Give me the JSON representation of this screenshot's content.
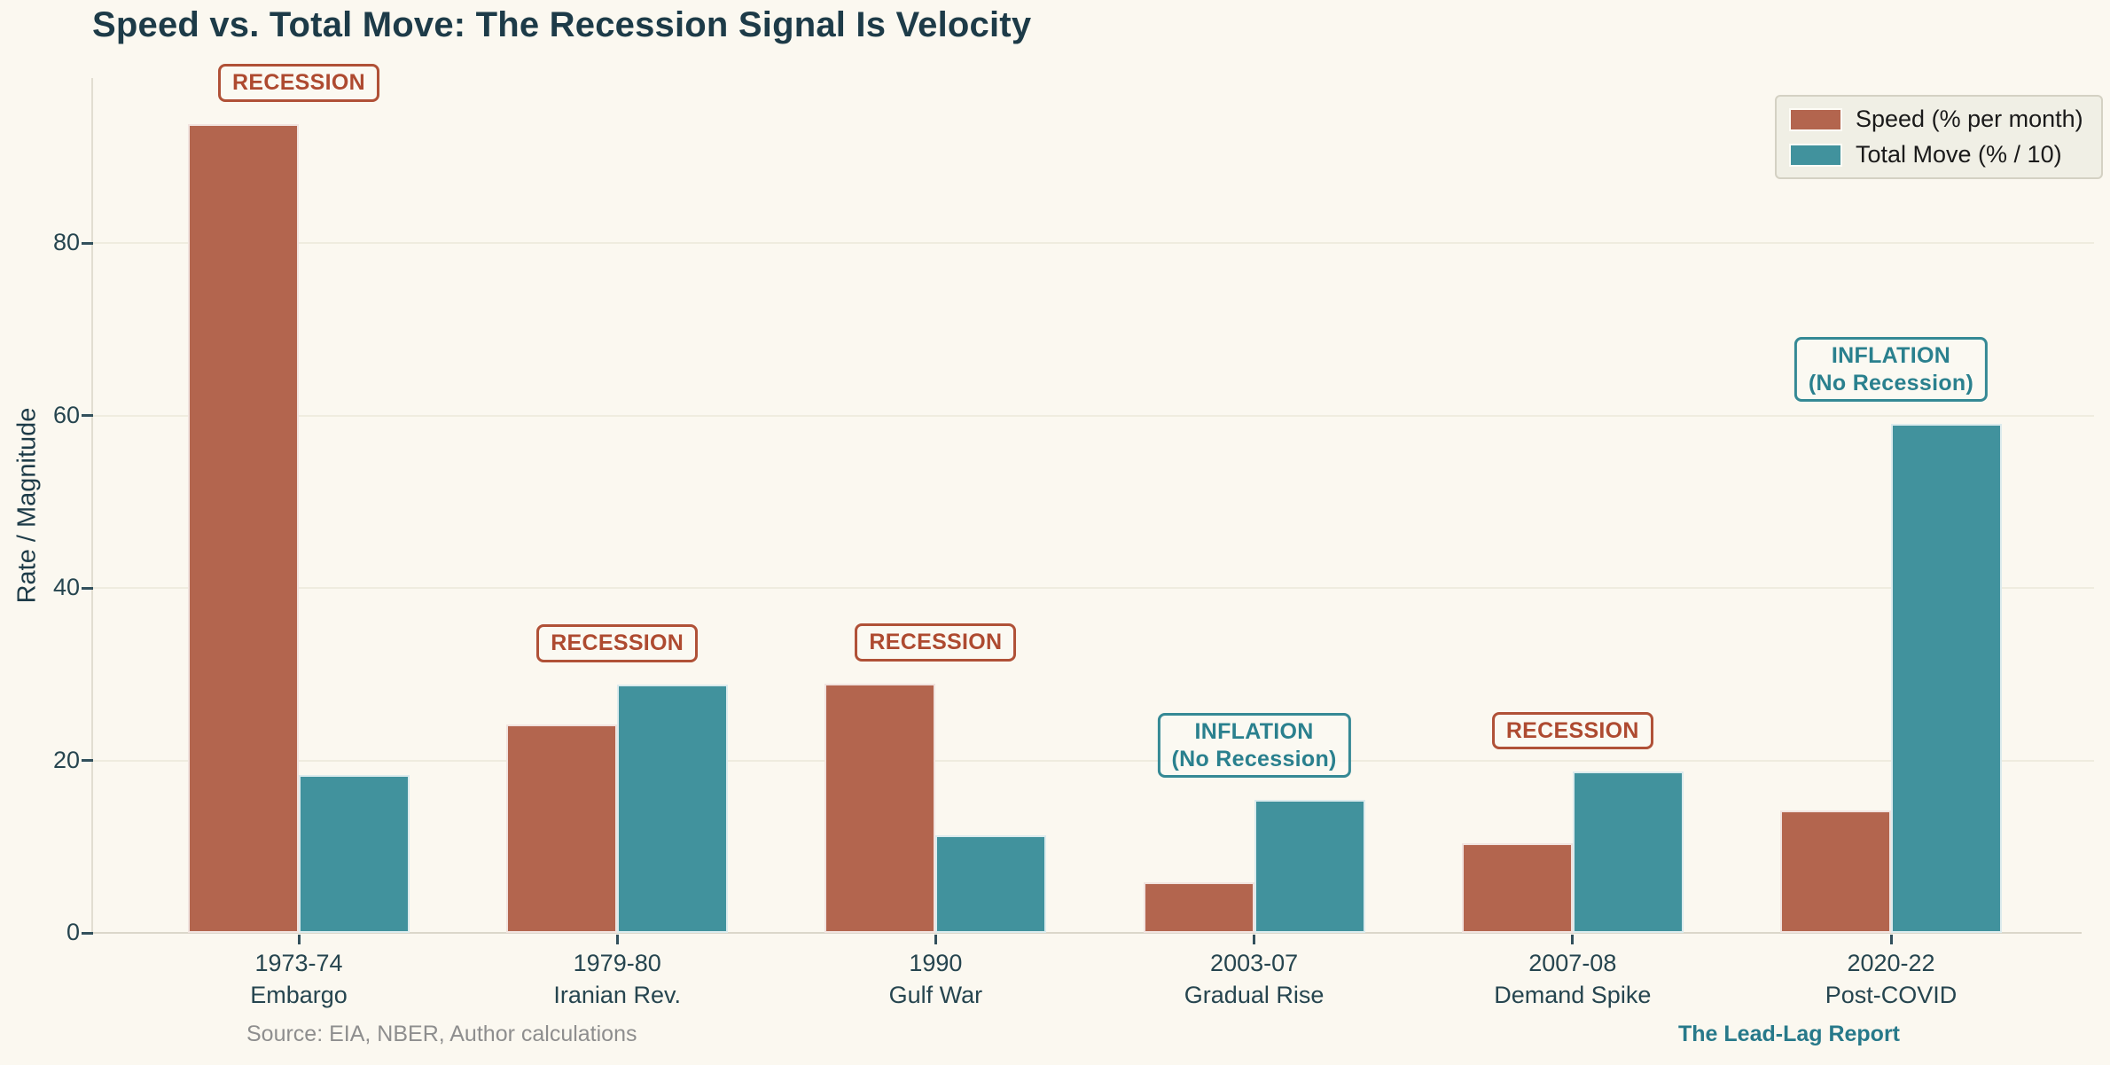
{
  "title": "Speed vs. Total Move: The Recession Signal Is Velocity",
  "y_axis": {
    "title": "Rate / Magnitude",
    "tick_labels": [
      "0",
      "20",
      "40",
      "60",
      "80"
    ],
    "tick_values": [
      0,
      20,
      40,
      60,
      80
    ]
  },
  "legend": {
    "items": [
      {
        "label": "Speed (% per month)",
        "color": "#b3654e"
      },
      {
        "label": "Total Move (% / 10)",
        "color": "#41929d"
      }
    ]
  },
  "footer": {
    "source": "Source: EIA, NBER, Author calculations",
    "brand": "The Lead-Lag Report"
  },
  "colors": {
    "background": "#fbf8f0",
    "title_text": "#1d3b48",
    "axis_text": "#26454f",
    "gridline": "#efecdf",
    "speed_bar": "#b3654e",
    "total_bar": "#41929d",
    "recession_badge": "#ae4a30",
    "inflation_badge": "#2a808e",
    "source_text": "#8e8e8e",
    "brand_text": "#27798a"
  },
  "chart_data": {
    "type": "bar",
    "title": "Speed vs. Total Move: The Recession Signal Is Velocity",
    "xlabel": "",
    "ylabel": "Rate / Magnitude",
    "ylim": [
      0,
      99
    ],
    "yticks": [
      0,
      20,
      40,
      60,
      80
    ],
    "grid": true,
    "legend_position": "upper right",
    "categories": [
      [
        "1973-74",
        "Embargo"
      ],
      [
        "1979-80",
        "Iranian Rev."
      ],
      [
        "1990",
        "Gulf War"
      ],
      [
        "2003-07",
        "Gradual Rise"
      ],
      [
        "2007-08",
        "Demand Spike"
      ],
      [
        "2020-22",
        "Post-COVID"
      ]
    ],
    "series": [
      {
        "name": "Speed (% per month)",
        "color": "#b3654e",
        "values": [
          93.8,
          24.2,
          28.9,
          5.9,
          10.4,
          14.2
        ]
      },
      {
        "name": "Total Move (% / 10)",
        "color": "#41929d",
        "values": [
          18.3,
          28.8,
          11.3,
          15.4,
          18.7,
          59.0
        ]
      }
    ],
    "annotations": [
      {
        "group": 0,
        "style": "recession",
        "lines": [
          "RECESSION"
        ]
      },
      {
        "group": 1,
        "style": "recession",
        "lines": [
          "RECESSION"
        ]
      },
      {
        "group": 2,
        "style": "recession",
        "lines": [
          "RECESSION"
        ]
      },
      {
        "group": 3,
        "style": "inflation",
        "lines": [
          "INFLATION",
          "(No Recession)"
        ]
      },
      {
        "group": 4,
        "style": "recession",
        "lines": [
          "RECESSION"
        ]
      },
      {
        "group": 5,
        "style": "inflation",
        "lines": [
          "INFLATION",
          "(No Recession)"
        ]
      }
    ]
  }
}
